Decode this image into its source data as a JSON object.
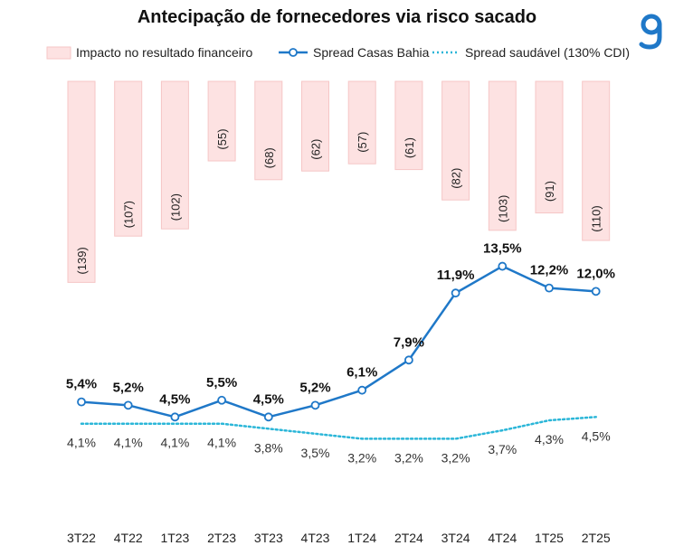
{
  "chart_data": {
    "type": "bar+line",
    "title": "Antecipação de fornecedores via risco sacado",
    "categories": [
      "3T22",
      "4T22",
      "1T23",
      "2T23",
      "3T23",
      "4T23",
      "1T24",
      "2T24",
      "3T24",
      "4T24",
      "1T25",
      "2T25"
    ],
    "legend_position": "top",
    "series": [
      {
        "name": "Impacto no resultado financeiro",
        "kind": "bar-downward",
        "values": [
          -139,
          -107,
          -102,
          -55,
          -68,
          -62,
          -57,
          -61,
          -82,
          -103,
          -91,
          -110
        ],
        "labels": [
          "(139)",
          "(107)",
          "(102)",
          "(55)",
          "(68)",
          "(62)",
          "(57)",
          "(61)",
          "(82)",
          "(103)",
          "(91)",
          "(110)"
        ],
        "color": "#fde2e2"
      },
      {
        "name": "Spread Casas Bahia",
        "kind": "line-markers",
        "values": [
          5.4,
          5.2,
          4.5,
          5.5,
          4.5,
          5.2,
          6.1,
          7.9,
          11.9,
          13.5,
          12.2,
          12.0
        ],
        "labels": [
          "5,4%",
          "5,2%",
          "4,5%",
          "5,5%",
          "4,5%",
          "5,2%",
          "6,1%",
          "7,9%",
          "11,9%",
          "13,5%",
          "12,2%",
          "12,0%"
        ],
        "color": "#1f78c8"
      },
      {
        "name": "Spread saudável (130% CDI)",
        "kind": "line-dotted",
        "values": [
          4.1,
          4.1,
          4.1,
          4.1,
          3.8,
          3.5,
          3.2,
          3.2,
          3.2,
          3.7,
          4.3,
          4.5
        ],
        "labels": [
          "4,1%",
          "4,1%",
          "4,1%",
          "4,1%",
          "3,8%",
          "3,5%",
          "3,2%",
          "3,2%",
          "3,2%",
          "3,7%",
          "4,3%",
          "4,5%"
        ],
        "color": "#2bb6d8"
      }
    ],
    "grid": false
  }
}
